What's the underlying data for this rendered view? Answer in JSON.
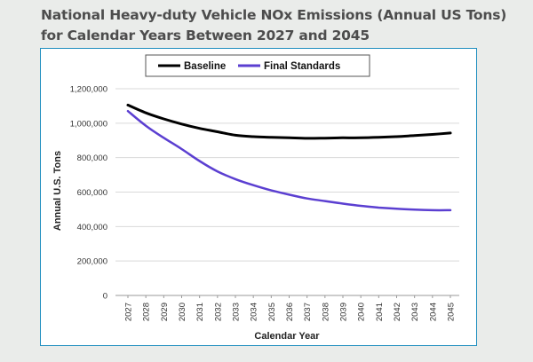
{
  "header": {
    "title_line1": "National Heavy-duty Vehicle NOx Emissions (Annual US Tons)",
    "title_line2": "for Calendar Years Between 2027 and 2045"
  },
  "chart_data": {
    "type": "line",
    "title": "National Heavy-duty Vehicle NOx Emissions (Annual US Tons) for Calendar Years Between 2027 and 2045",
    "xlabel": "Calendar Year",
    "ylabel": "Annual U.S. Tons",
    "x": [
      "2027",
      "2028",
      "2029",
      "2030",
      "2031",
      "2032",
      "2033",
      "2034",
      "2035",
      "2036",
      "2037",
      "2038",
      "2039",
      "2040",
      "2041",
      "2042",
      "2043",
      "2044",
      "2045"
    ],
    "yticks": [
      "0",
      "200,000",
      "400,000",
      "600,000",
      "800,000",
      "1,000,000",
      "1,200,000"
    ],
    "ylim": [
      0,
      1200000
    ],
    "grid": true,
    "legend_position": "top",
    "series": [
      {
        "name": "Baseline",
        "color": "#000000",
        "values": [
          1105000,
          1060000,
          1025000,
          995000,
          970000,
          950000,
          930000,
          922000,
          918000,
          915000,
          912000,
          913000,
          915000,
          915000,
          918000,
          922000,
          928000,
          935000,
          943000
        ]
      },
      {
        "name": "Final Standards",
        "color": "#5b3fd1",
        "values": [
          1070000,
          985000,
          915000,
          850000,
          780000,
          720000,
          675000,
          640000,
          610000,
          585000,
          563000,
          548000,
          533000,
          520000,
          510000,
          503000,
          498000,
          495000,
          495000
        ]
      }
    ]
  }
}
